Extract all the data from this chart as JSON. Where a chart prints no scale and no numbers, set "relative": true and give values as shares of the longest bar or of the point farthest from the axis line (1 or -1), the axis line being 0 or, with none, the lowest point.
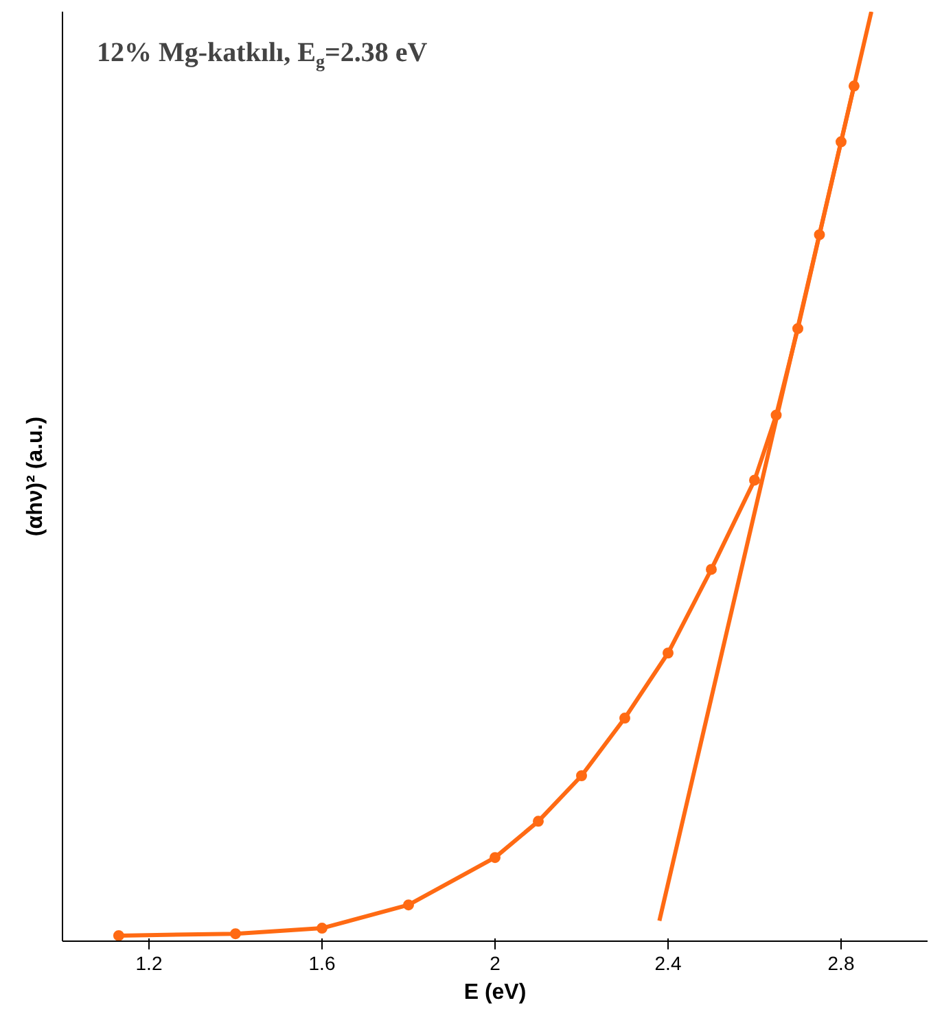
{
  "chart_data": {
    "type": "line",
    "title": "12% Mg-katkılı, E$_{g}$=2.38 eV",
    "xlabel": "E (eV)",
    "ylabel": "(αhν)² (a.u.)",
    "relative": true,
    "xlim": [
      1.0,
      3.0
    ],
    "xticks": [
      1.2,
      1.6,
      2,
      2.4,
      2.8
    ],
    "tick_labels": "x",
    "grid": false,
    "series": [
      {
        "marker": "circle",
        "color": "#ff6a13",
        "x": [
          1.13,
          1.4,
          1.6,
          1.8,
          2.0,
          2.1,
          2.2,
          2.3,
          2.4,
          2.5,
          2.6,
          2.65,
          2.7,
          2.75,
          2.8,
          2.83
        ],
        "values": [
          0.006,
          0.008,
          0.014,
          0.039,
          0.09,
          0.129,
          0.178,
          0.24,
          0.31,
          0.4,
          0.496,
          0.566,
          0.659,
          0.76,
          0.86,
          0.92
        ]
      },
      {
        "marker": "none",
        "color": "#ff6a13",
        "x": [
          2.38,
          2.87
        ],
        "values": [
          0.022,
          1.0
        ]
      }
    ]
  }
}
